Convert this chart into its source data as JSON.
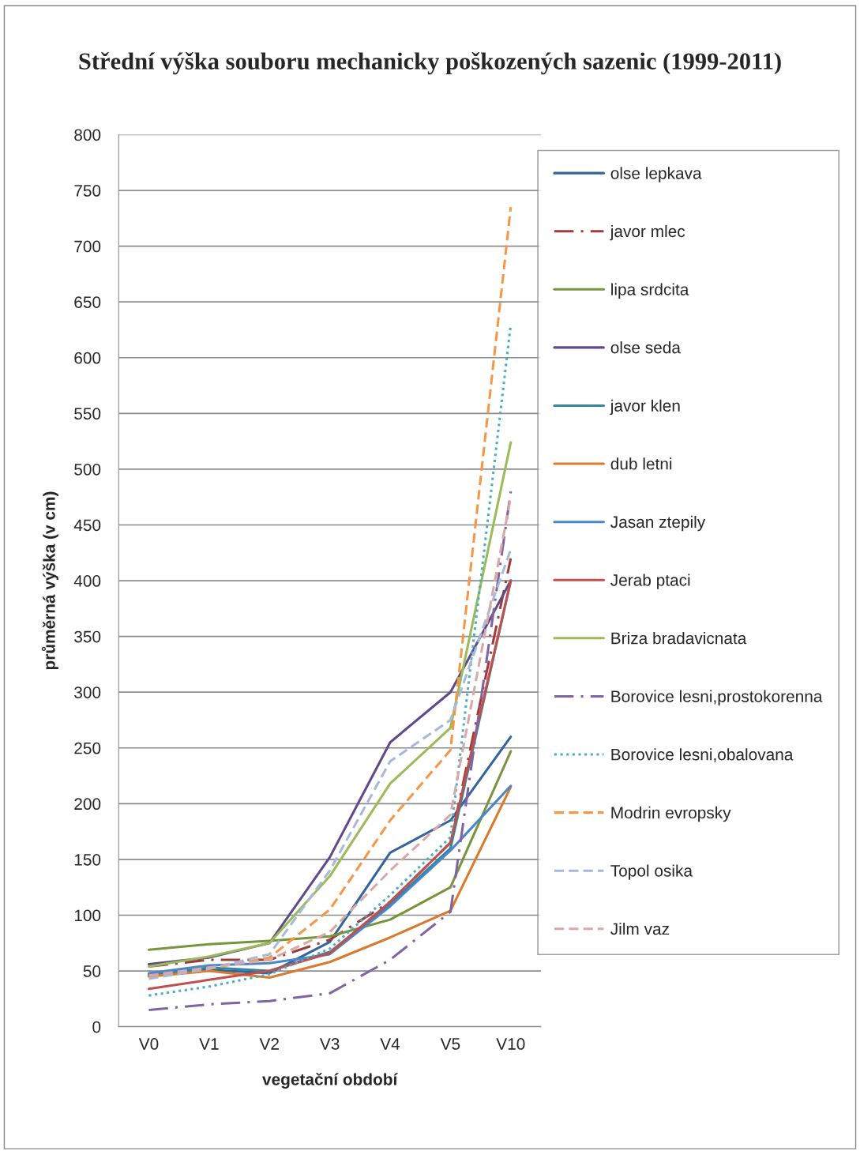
{
  "chart_data": {
    "type": "line",
    "title": "Střední výška souboru mechanicky poškozených sazenic (1999-2011)",
    "xlabel": "vegetační období",
    "ylabel": "průměrná výška (v cm)",
    "categories": [
      "V0",
      "V1",
      "V2",
      "V3",
      "V4",
      "V5",
      "V10"
    ],
    "ylim": [
      0,
      800
    ],
    "yticks": [
      0,
      50,
      100,
      150,
      200,
      250,
      300,
      350,
      400,
      450,
      500,
      550,
      600,
      650,
      700,
      750,
      800
    ],
    "grid": "y",
    "legend": "right",
    "marker": "none",
    "series": [
      {
        "name": "olse lepkava",
        "color": "#33659c",
        "line_style": "solid",
        "values": [
          47,
          51,
          48,
          76,
          156,
          185,
          260
        ]
      },
      {
        "name": "javor mlec",
        "color": "#a33a3a",
        "line_style": "dashdot",
        "values": [
          54,
          60,
          60,
          78,
          112,
          165,
          420
        ]
      },
      {
        "name": "lipa srdcita",
        "color": "#77953d",
        "line_style": "solid",
        "values": [
          69,
          74,
          77,
          81,
          96,
          125,
          247
        ]
      },
      {
        "name": "olse seda",
        "color": "#5f4b8b",
        "line_style": "solid",
        "values": [
          56,
          62,
          75,
          152,
          255,
          300,
          400
        ]
      },
      {
        "name": "javor klen",
        "color": "#31859c",
        "line_style": "solid",
        "values": [
          46,
          53,
          50,
          67,
          110,
          160,
          400
        ]
      },
      {
        "name": "dub letni",
        "color": "#d97a2d",
        "line_style": "solid",
        "values": [
          45,
          50,
          44,
          58,
          80,
          104,
          215
        ]
      },
      {
        "name": "Jasan ztepily",
        "color": "#4a86c8",
        "line_style": "solid",
        "values": [
          48,
          55,
          57,
          65,
          108,
          158,
          216
        ]
      },
      {
        "name": "Jerab ptaci",
        "color": "#c0504d",
        "line_style": "solid",
        "values": [
          34,
          42,
          50,
          66,
          112,
          165,
          400
        ]
      },
      {
        "name": "Briza bradavicnata",
        "color": "#9bbb59",
        "line_style": "solid",
        "values": [
          54,
          63,
          75,
          135,
          218,
          268,
          524
        ]
      },
      {
        "name": "Borovice lesni,prostokorenna",
        "color": "#8064a2",
        "line_style": "dashdot",
        "values": [
          15,
          20,
          23,
          30,
          60,
          103,
          480
        ]
      },
      {
        "name": "Borovice lesni,obalovana",
        "color": "#4bacc6",
        "line_style": "dotted",
        "values": [
          28,
          36,
          47,
          70,
          118,
          170,
          630
        ]
      },
      {
        "name": "Modrin evropsky",
        "color": "#f79646",
        "line_style": "dashed",
        "values": [
          45,
          52,
          62,
          105,
          185,
          248,
          735
        ]
      },
      {
        "name": "Topol osika",
        "color": "#a7b9d8",
        "line_style": "dashed",
        "values": [
          43,
          52,
          65,
          140,
          238,
          275,
          428
        ]
      },
      {
        "name": "Jilm vaz",
        "color": "#d8a9a6",
        "line_style": "dashed",
        "values": [
          46,
          53,
          60,
          85,
          140,
          190,
          475
        ]
      }
    ]
  }
}
